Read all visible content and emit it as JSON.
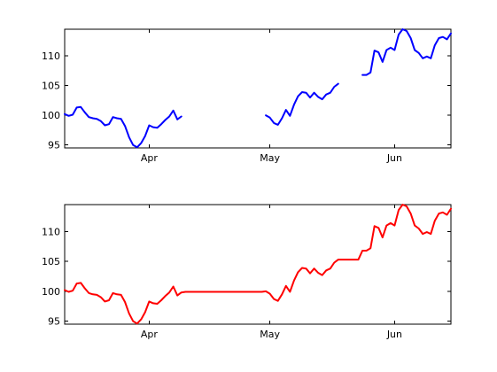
{
  "chart_data": [
    {
      "type": "line",
      "title": "",
      "xlabel": "",
      "ylabel": "",
      "x_domain": [
        "2013-03-11",
        "2013-06-15"
      ],
      "xlim": [
        0,
        96
      ],
      "x_ticks": [
        {
          "label": "Apr",
          "date": "2013-04-01"
        },
        {
          "label": "May",
          "date": "2013-05-01"
        },
        {
          "label": "Jun",
          "date": "2013-06-01"
        }
      ],
      "ylim": [
        94.5,
        114.5
      ],
      "y_ticks": [
        95,
        100,
        105,
        110
      ],
      "grid": false,
      "legend": "none",
      "series": [
        {
          "color": "#0000ff",
          "segments": [
            [
              [
                "2013-03-11",
                100.2
              ],
              [
                "2013-03-12",
                99.9
              ],
              [
                "2013-03-13",
                100.1
              ],
              [
                "2013-03-14",
                101.3
              ],
              [
                "2013-03-15",
                101.4
              ],
              [
                "2013-03-16",
                100.5
              ],
              [
                "2013-03-17",
                99.7
              ],
              [
                "2013-03-18",
                99.5
              ],
              [
                "2013-03-19",
                99.4
              ],
              [
                "2013-03-20",
                99.0
              ],
              [
                "2013-03-21",
                98.3
              ],
              [
                "2013-03-22",
                98.5
              ],
              [
                "2013-03-23",
                99.7
              ],
              [
                "2013-03-24",
                99.5
              ],
              [
                "2013-03-25",
                99.4
              ],
              [
                "2013-03-26",
                98.2
              ],
              [
                "2013-03-27",
                96.3
              ],
              [
                "2013-03-28",
                95.0
              ],
              [
                "2013-03-29",
                94.6
              ],
              [
                "2013-03-30",
                95.3
              ],
              [
                "2013-03-31",
                96.5
              ],
              [
                "2013-04-01",
                98.3
              ],
              [
                "2013-04-02",
                98.0
              ],
              [
                "2013-04-03",
                97.9
              ],
              [
                "2013-04-04",
                98.5
              ],
              [
                "2013-04-05",
                99.2
              ],
              [
                "2013-04-06",
                99.8
              ],
              [
                "2013-04-07",
                100.8
              ],
              [
                "2013-04-08",
                99.3
              ],
              [
                "2013-04-09",
                99.8
              ]
            ],
            [
              [
                "2013-04-30",
                100.0
              ],
              [
                "2013-05-01",
                99.6
              ],
              [
                "2013-05-02",
                98.7
              ],
              [
                "2013-05-03",
                98.4
              ],
              [
                "2013-05-04",
                99.5
              ],
              [
                "2013-05-05",
                100.9
              ],
              [
                "2013-05-06",
                99.9
              ],
              [
                "2013-05-07",
                101.8
              ],
              [
                "2013-05-08",
                103.2
              ],
              [
                "2013-05-09",
                103.9
              ],
              [
                "2013-05-10",
                103.8
              ],
              [
                "2013-05-11",
                103.0
              ],
              [
                "2013-05-12",
                103.8
              ],
              [
                "2013-05-13",
                103.1
              ],
              [
                "2013-05-14",
                102.7
              ],
              [
                "2013-05-15",
                103.5
              ],
              [
                "2013-05-16",
                103.8
              ],
              [
                "2013-05-17",
                104.8
              ],
              [
                "2013-05-18",
                105.3
              ]
            ],
            [
              [
                "2013-05-24",
                106.8
              ],
              [
                "2013-05-25",
                106.8
              ],
              [
                "2013-05-26",
                107.2
              ],
              [
                "2013-05-27",
                110.9
              ],
              [
                "2013-05-28",
                110.6
              ],
              [
                "2013-05-29",
                109.0
              ],
              [
                "2013-05-30",
                111.0
              ],
              [
                "2013-05-31",
                111.4
              ],
              [
                "2013-06-01",
                111.0
              ],
              [
                "2013-06-02",
                113.6
              ],
              [
                "2013-06-03",
                114.5
              ],
              [
                "2013-06-04",
                114.2
              ],
              [
                "2013-06-05",
                113.0
              ],
              [
                "2013-06-06",
                111.0
              ],
              [
                "2013-06-07",
                110.5
              ],
              [
                "2013-06-08",
                109.6
              ],
              [
                "2013-06-09",
                109.9
              ],
              [
                "2013-06-10",
                109.6
              ],
              [
                "2013-06-11",
                111.8
              ],
              [
                "2013-06-12",
                113.0
              ],
              [
                "2013-06-13",
                113.2
              ],
              [
                "2013-06-14",
                112.8
              ],
              [
                "2013-06-15",
                113.8
              ]
            ]
          ]
        }
      ]
    },
    {
      "type": "line",
      "title": "",
      "xlabel": "",
      "ylabel": "",
      "x_domain": [
        "2013-03-11",
        "2013-06-15"
      ],
      "xlim": [
        0,
        96
      ],
      "x_ticks": [
        {
          "label": "Apr",
          "date": "2013-04-01"
        },
        {
          "label": "May",
          "date": "2013-05-01"
        },
        {
          "label": "Jun",
          "date": "2013-06-01"
        }
      ],
      "ylim": [
        94.5,
        114.5
      ],
      "y_ticks": [
        95,
        100,
        105,
        110
      ],
      "grid": false,
      "legend": "none",
      "series": [
        {
          "color": "#ff0000",
          "segments": [
            [
              [
                "2013-03-11",
                100.2
              ],
              [
                "2013-03-12",
                99.9
              ],
              [
                "2013-03-13",
                100.1
              ],
              [
                "2013-03-14",
                101.3
              ],
              [
                "2013-03-15",
                101.4
              ],
              [
                "2013-03-16",
                100.5
              ],
              [
                "2013-03-17",
                99.7
              ],
              [
                "2013-03-18",
                99.5
              ],
              [
                "2013-03-19",
                99.4
              ],
              [
                "2013-03-20",
                99.0
              ],
              [
                "2013-03-21",
                98.3
              ],
              [
                "2013-03-22",
                98.5
              ],
              [
                "2013-03-23",
                99.7
              ],
              [
                "2013-03-24",
                99.5
              ],
              [
                "2013-03-25",
                99.4
              ],
              [
                "2013-03-26",
                98.2
              ],
              [
                "2013-03-27",
                96.3
              ],
              [
                "2013-03-28",
                95.0
              ],
              [
                "2013-03-29",
                94.6
              ],
              [
                "2013-03-30",
                95.3
              ],
              [
                "2013-03-31",
                96.5
              ],
              [
                "2013-04-01",
                98.3
              ],
              [
                "2013-04-02",
                98.0
              ],
              [
                "2013-04-03",
                97.9
              ],
              [
                "2013-04-04",
                98.5
              ],
              [
                "2013-04-05",
                99.2
              ],
              [
                "2013-04-06",
                99.8
              ],
              [
                "2013-04-07",
                100.8
              ],
              [
                "2013-04-08",
                99.3
              ],
              [
                "2013-04-09",
                99.8
              ],
              [
                "2013-04-10",
                99.9
              ],
              [
                "2013-04-15",
                99.9
              ],
              [
                "2013-04-20",
                99.9
              ],
              [
                "2013-04-25",
                99.9
              ],
              [
                "2013-04-29",
                99.9
              ],
              [
                "2013-04-30",
                100.0
              ],
              [
                "2013-05-01",
                99.6
              ],
              [
                "2013-05-02",
                98.7
              ],
              [
                "2013-05-03",
                98.4
              ],
              [
                "2013-05-04",
                99.5
              ],
              [
                "2013-05-05",
                100.9
              ],
              [
                "2013-05-06",
                99.9
              ],
              [
                "2013-05-07",
                101.8
              ],
              [
                "2013-05-08",
                103.2
              ],
              [
                "2013-05-09",
                103.9
              ],
              [
                "2013-05-10",
                103.8
              ],
              [
                "2013-05-11",
                103.0
              ],
              [
                "2013-05-12",
                103.8
              ],
              [
                "2013-05-13",
                103.1
              ],
              [
                "2013-05-14",
                102.7
              ],
              [
                "2013-05-15",
                103.5
              ],
              [
                "2013-05-16",
                103.8
              ],
              [
                "2013-05-17",
                104.8
              ],
              [
                "2013-05-18",
                105.3
              ],
              [
                "2013-05-19",
                105.3
              ],
              [
                "2013-05-20",
                105.3
              ],
              [
                "2013-05-21",
                105.3
              ],
              [
                "2013-05-22",
                105.3
              ],
              [
                "2013-05-23",
                105.3
              ],
              [
                "2013-05-24",
                106.8
              ],
              [
                "2013-05-25",
                106.8
              ],
              [
                "2013-05-26",
                107.2
              ],
              [
                "2013-05-27",
                110.9
              ],
              [
                "2013-05-28",
                110.6
              ],
              [
                "2013-05-29",
                109.0
              ],
              [
                "2013-05-30",
                111.0
              ],
              [
                "2013-05-31",
                111.4
              ],
              [
                "2013-06-01",
                111.0
              ],
              [
                "2013-06-02",
                113.6
              ],
              [
                "2013-06-03",
                114.5
              ],
              [
                "2013-06-04",
                114.2
              ],
              [
                "2013-06-05",
                113.0
              ],
              [
                "2013-06-06",
                111.0
              ],
              [
                "2013-06-07",
                110.5
              ],
              [
                "2013-06-08",
                109.6
              ],
              [
                "2013-06-09",
                109.9
              ],
              [
                "2013-06-10",
                109.6
              ],
              [
                "2013-06-11",
                111.8
              ],
              [
                "2013-06-12",
                113.0
              ],
              [
                "2013-06-13",
                113.2
              ],
              [
                "2013-06-14",
                112.8
              ],
              [
                "2013-06-15",
                113.8
              ]
            ]
          ]
        }
      ]
    }
  ]
}
